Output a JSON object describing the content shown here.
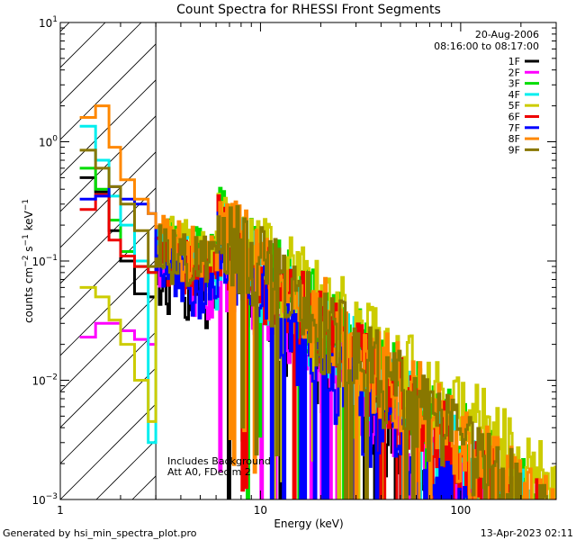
{
  "chart_data": {
    "type": "line",
    "title": "Count Spectra for RHESSI Front Segments",
    "xlabel": "Energy (keV)",
    "ylabel_parts": {
      "base": "counts cm",
      "exp1": "−2",
      "mid": " s",
      "exp2": "−1",
      "tail": " keV",
      "exp3": "−1"
    },
    "xscale": "log",
    "yscale": "log",
    "xlim": [
      1,
      300
    ],
    "ylim": [
      0.001,
      10
    ],
    "x_ticks": [
      {
        "value": 1,
        "label": "1"
      },
      {
        "value": 10,
        "label": "10"
      },
      {
        "value": 100,
        "label": "100"
      }
    ],
    "y_ticks": [
      {
        "value": 0.001,
        "base": "10",
        "exp": "−3"
      },
      {
        "value": 0.01,
        "base": "10",
        "exp": "−2"
      },
      {
        "value": 0.1,
        "base": "10",
        "exp": "−1"
      },
      {
        "value": 1,
        "base": "10",
        "exp": "0"
      },
      {
        "value": 10,
        "base": "10",
        "exp": "1"
      }
    ],
    "attenuator_region_x": [
      1,
      3
    ],
    "date": "20-Aug-2006",
    "time_range": "08:16:00 to 08:17:00",
    "annotations": [
      "Includes Background",
      "Att A0, FDecim 2"
    ],
    "legend_position": "top-right",
    "series": [
      {
        "name": "1F",
        "color": "#000000",
        "seed": 11,
        "low": [
          0.5,
          0.38,
          0.18,
          0.1,
          0.053,
          0.05
        ],
        "b": 0.042,
        "p": 1.7
      },
      {
        "name": "2F",
        "color": "#ff00ff",
        "seed": 23,
        "low": [
          0.023,
          0.03,
          0.03,
          0.026,
          0.022,
          0.02
        ],
        "b": 0.05,
        "p": 1.6
      },
      {
        "name": "3F",
        "color": "#00dd00",
        "seed": 37,
        "low": [
          0.6,
          0.4,
          0.22,
          0.12,
          0.09,
          0.08
        ],
        "b": 0.09,
        "p": 1.5
      },
      {
        "name": "4F",
        "color": "#00eeee",
        "seed": 41,
        "low": [
          1.35,
          0.7,
          0.35,
          0.2,
          0.1,
          0.003
        ],
        "b": 0.07,
        "p": 1.5
      },
      {
        "name": "5F",
        "color": "#cccc00",
        "seed": 53,
        "low": [
          0.06,
          0.05,
          0.032,
          0.02,
          0.01,
          0.0045
        ],
        "b": 0.1,
        "p": 1.3
      },
      {
        "name": "6F",
        "color": "#ee0000",
        "seed": 67,
        "low": [
          0.27,
          0.36,
          0.15,
          0.11,
          0.09,
          0.08
        ],
        "b": 0.07,
        "p": 1.5
      },
      {
        "name": "7F",
        "color": "#0000ff",
        "seed": 71,
        "low": [
          0.33,
          0.35,
          0.42,
          0.33,
          0.3,
          0.25
        ],
        "b": 0.05,
        "p": 1.9
      },
      {
        "name": "8F",
        "color": "#ff8800",
        "seed": 83,
        "low": [
          1.6,
          2.0,
          0.9,
          0.48,
          0.33,
          0.25
        ],
        "b": 0.09,
        "p": 1.5
      },
      {
        "name": "9F",
        "color": "#887700",
        "seed": 97,
        "low": [
          0.85,
          0.6,
          0.42,
          0.3,
          0.18,
          0.09
        ],
        "b": 0.08,
        "p": 1.5
      }
    ]
  },
  "footer": {
    "left": "Generated by hsi_min_spectra_plot.pro",
    "right": "13-Apr-2023 02:11"
  }
}
